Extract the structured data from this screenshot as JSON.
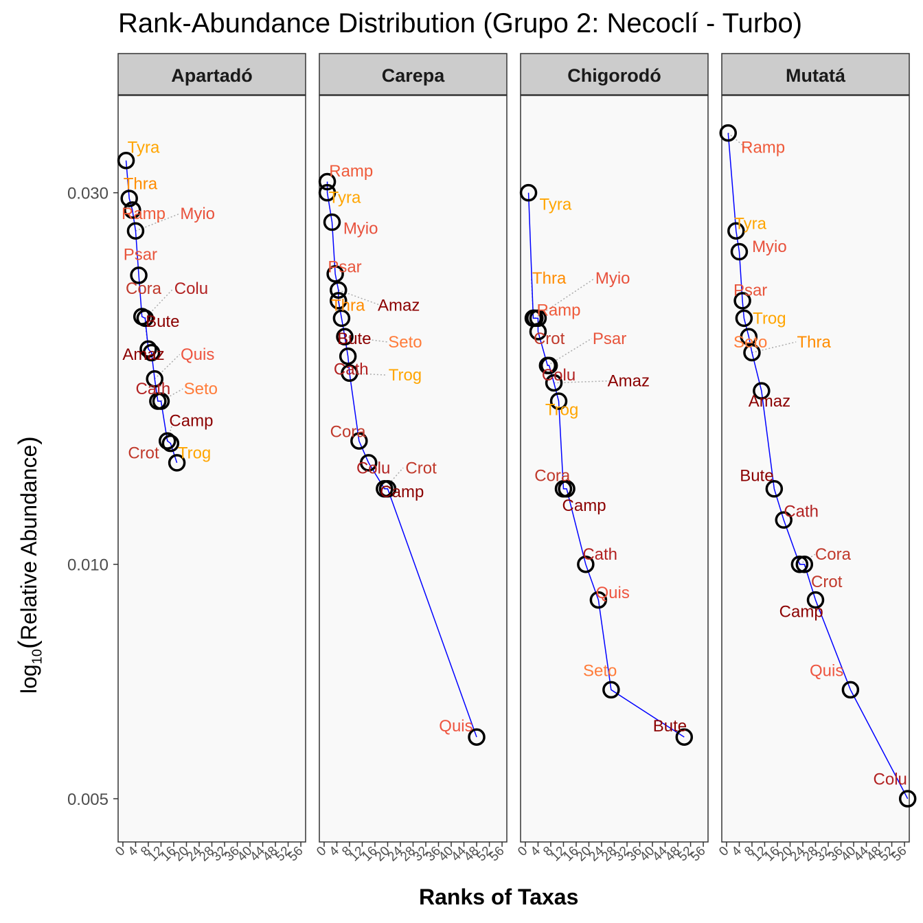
{
  "chart_data": {
    "type": "scatter",
    "title": "Rank-Abundance Distribution (Grupo 2: Necoclí - Turbo)",
    "xlabel": "Ranks of Taxas",
    "ylabel": {
      "prefix": "log",
      "sub": "10",
      "text": "Relative Abundance"
    },
    "y_scale": "log",
    "ylim": [
      0.0044,
      0.04
    ],
    "xlim": [
      -1.5,
      57.5
    ],
    "y_ticks": [
      {
        "value": 0.005,
        "label": "0.005"
      },
      {
        "value": 0.01,
        "label": "0.010"
      },
      {
        "value": 0.03,
        "label": "0.030"
      }
    ],
    "x_ticks": [
      0,
      4,
      8,
      12,
      16,
      20,
      24,
      28,
      32,
      36,
      40,
      44,
      48,
      52,
      56
    ],
    "panel_background": "#f9f9f9",
    "strip_background": "#cccccc",
    "line_color": "#0000ff",
    "point_color": "#000000",
    "label_colors": {
      "Tyra": "#ffa500",
      "Thra": "#ff8c00",
      "Trog": "#ffa500",
      "Ramp": "#ef5a3a",
      "Myio": "#e8513c",
      "Psar": "#e8553c",
      "Seto": "#ff7c3a",
      "Quis": "#ee5540",
      "Cora": "#c0392b",
      "Crot": "#c0392b",
      "Colu": "#b22222",
      "Cath": "#b22222",
      "Bute": "#8b0000",
      "Amaz": "#8b0000",
      "Camp": "#8b0000"
    },
    "panels": [
      {
        "name": "Apartadó",
        "points": [
          {
            "taxon": "Tyra",
            "rank": 1,
            "abundance": 0.033
          },
          {
            "taxon": "Thra",
            "rank": 2,
            "abundance": 0.0295
          },
          {
            "taxon": "Ramp",
            "rank": 3,
            "abundance": 0.0285
          },
          {
            "taxon": "Myio",
            "rank": 4,
            "abundance": 0.0268
          },
          {
            "taxon": "Psar",
            "rank": 5,
            "abundance": 0.0235
          },
          {
            "taxon": "Cora",
            "rank": 6,
            "abundance": 0.0208
          },
          {
            "taxon": "Colu",
            "rank": 7,
            "abundance": 0.0207
          },
          {
            "taxon": "Bute",
            "rank": 8,
            "abundance": 0.0189
          },
          {
            "taxon": "Amaz",
            "rank": 9,
            "abundance": 0.0187
          },
          {
            "taxon": "Quis",
            "rank": 10,
            "abundance": 0.0173
          },
          {
            "taxon": "Cath",
            "rank": 11,
            "abundance": 0.0162
          },
          {
            "taxon": "Seto",
            "rank": 12,
            "abundance": 0.0162
          },
          {
            "taxon": "Camp",
            "rank": 14,
            "abundance": 0.0144
          },
          {
            "taxon": "Crot",
            "rank": 15,
            "abundance": 0.0143
          },
          {
            "taxon": "Trog",
            "rank": 17,
            "abundance": 0.0135
          }
        ],
        "labels": [
          {
            "taxon": "Tyra",
            "rank": 6.5,
            "abundance": 0.0343
          },
          {
            "taxon": "Thra",
            "rank": 5.5,
            "abundance": 0.0308
          },
          {
            "taxon": "Ramp",
            "rank": 6.5,
            "abundance": 0.0282
          },
          {
            "taxon": "Myio",
            "rank": 23.5,
            "abundance": 0.0282
          },
          {
            "taxon": "Psar",
            "rank": 5.5,
            "abundance": 0.025
          },
          {
            "taxon": "Cora",
            "rank": 6.5,
            "abundance": 0.0226
          },
          {
            "taxon": "Colu",
            "rank": 21.5,
            "abundance": 0.0226
          },
          {
            "taxon": "Bute",
            "rank": 12.5,
            "abundance": 0.0205
          },
          {
            "taxon": "Amaz",
            "rank": 6.5,
            "abundance": 0.0186
          },
          {
            "taxon": "Quis",
            "rank": 23.5,
            "abundance": 0.0186
          },
          {
            "taxon": "Cath",
            "rank": 9.5,
            "abundance": 0.0168
          },
          {
            "taxon": "Seto",
            "rank": 24.5,
            "abundance": 0.0168
          },
          {
            "taxon": "Camp",
            "rank": 21.5,
            "abundance": 0.0153
          },
          {
            "taxon": "Crot",
            "rank": 6.5,
            "abundance": 0.0139
          },
          {
            "taxon": "Trog",
            "rank": 22.5,
            "abundance": 0.0139
          }
        ]
      },
      {
        "name": "Carepa",
        "points": [
          {
            "taxon": "Ramp",
            "rank": 1,
            "abundance": 0.031
          },
          {
            "taxon": "Tyra",
            "rank": 1,
            "abundance": 0.03
          },
          {
            "taxon": "Myio",
            "rank": 2.5,
            "abundance": 0.0275
          },
          {
            "taxon": "Psar",
            "rank": 3.5,
            "abundance": 0.0236
          },
          {
            "taxon": "Amaz",
            "rank": 4.5,
            "abundance": 0.0225
          },
          {
            "taxon": "Thra",
            "rank": 4.5,
            "abundance": 0.0218
          },
          {
            "taxon": "Bute",
            "rank": 5.5,
            "abundance": 0.0207
          },
          {
            "taxon": "Seto",
            "rank": 6.5,
            "abundance": 0.0196
          },
          {
            "taxon": "Cath",
            "rank": 7.5,
            "abundance": 0.0185
          },
          {
            "taxon": "Trog",
            "rank": 8,
            "abundance": 0.0176
          },
          {
            "taxon": "Cora",
            "rank": 11,
            "abundance": 0.0144
          },
          {
            "taxon": "Colu",
            "rank": 14,
            "abundance": 0.0135
          },
          {
            "taxon": "Crot",
            "rank": 19,
            "abundance": 0.0125
          },
          {
            "taxon": "Camp",
            "rank": 20,
            "abundance": 0.0125
          },
          {
            "taxon": "Quis",
            "rank": 48,
            "abundance": 0.006
          }
        ],
        "labels": [
          {
            "taxon": "Ramp",
            "rank": 8.5,
            "abundance": 0.032
          },
          {
            "taxon": "Tyra",
            "rank": 6.5,
            "abundance": 0.0296
          },
          {
            "taxon": "Myio",
            "rank": 11.5,
            "abundance": 0.027
          },
          {
            "taxon": "Psar",
            "rank": 6.5,
            "abundance": 0.0241
          },
          {
            "taxon": "Amaz",
            "rank": 23.5,
            "abundance": 0.0215
          },
          {
            "taxon": "Thra",
            "rank": 7.5,
            "abundance": 0.0215
          },
          {
            "taxon": "Bute",
            "rank": 9.5,
            "abundance": 0.0195
          },
          {
            "taxon": "Seto",
            "rank": 25.5,
            "abundance": 0.0193
          },
          {
            "taxon": "Cath",
            "rank": 8.5,
            "abundance": 0.0178
          },
          {
            "taxon": "Trog",
            "rank": 25.5,
            "abundance": 0.0175
          },
          {
            "taxon": "Cora",
            "rank": 7.5,
            "abundance": 0.0148
          },
          {
            "taxon": "Colu",
            "rank": 15.5,
            "abundance": 0.0133
          },
          {
            "taxon": "Crot",
            "rank": 30.5,
            "abundance": 0.0133
          },
          {
            "taxon": "Camp",
            "rank": 24.5,
            "abundance": 0.0124
          },
          {
            "taxon": "Quis",
            "rank": 41.5,
            "abundance": 0.0062
          }
        ]
      },
      {
        "name": "Chigorodó",
        "points": [
          {
            "taxon": "Tyra",
            "rank": 1,
            "abundance": 0.03
          },
          {
            "taxon": "Thra",
            "rank": 2.5,
            "abundance": 0.0207
          },
          {
            "taxon": "Myio",
            "rank": 3,
            "abundance": 0.0207
          },
          {
            "taxon": "Ramp",
            "rank": 4,
            "abundance": 0.0207
          },
          {
            "taxon": "Crot",
            "rank": 4,
            "abundance": 0.0199
          },
          {
            "taxon": "Psar",
            "rank": 7,
            "abundance": 0.018
          },
          {
            "taxon": "Colu",
            "rank": 7.5,
            "abundance": 0.018
          },
          {
            "taxon": "Amaz",
            "rank": 9,
            "abundance": 0.0171
          },
          {
            "taxon": "Trog",
            "rank": 10.5,
            "abundance": 0.0162
          },
          {
            "taxon": "Cora",
            "rank": 12,
            "abundance": 0.0125
          },
          {
            "taxon": "Camp",
            "rank": 13,
            "abundance": 0.0125
          },
          {
            "taxon": "Cath",
            "rank": 19,
            "abundance": 0.01
          },
          {
            "taxon": "Quis",
            "rank": 23,
            "abundance": 0.009
          },
          {
            "taxon": "Seto",
            "rank": 27,
            "abundance": 0.0069
          },
          {
            "taxon": "Bute",
            "rank": 50,
            "abundance": 0.006
          }
        ],
        "labels": [
          {
            "taxon": "Tyra",
            "rank": 9.5,
            "abundance": 0.029
          },
          {
            "taxon": "Thra",
            "rank": 7.5,
            "abundance": 0.0233
          },
          {
            "taxon": "Myio",
            "rank": 27.5,
            "abundance": 0.0233
          },
          {
            "taxon": "Ramp",
            "rank": 10.5,
            "abundance": 0.0212
          },
          {
            "taxon": "Crot",
            "rank": 7.5,
            "abundance": 0.0195
          },
          {
            "taxon": "Psar",
            "rank": 26.5,
            "abundance": 0.0195
          },
          {
            "taxon": "Colu",
            "rank": 10.5,
            "abundance": 0.0175
          },
          {
            "taxon": "Amaz",
            "rank": 32.5,
            "abundance": 0.0172
          },
          {
            "taxon": "Trog",
            "rank": 11.5,
            "abundance": 0.0158
          },
          {
            "taxon": "Cora",
            "rank": 8.5,
            "abundance": 0.013
          },
          {
            "taxon": "Camp",
            "rank": 18.5,
            "abundance": 0.0119
          },
          {
            "taxon": "Cath",
            "rank": 23.5,
            "abundance": 0.0103
          },
          {
            "taxon": "Quis",
            "rank": 27.5,
            "abundance": 0.0092
          },
          {
            "taxon": "Seto",
            "rank": 23.5,
            "abundance": 0.0073
          },
          {
            "taxon": "Bute",
            "rank": 45.5,
            "abundance": 0.0062
          }
        ]
      },
      {
        "name": "Mutatá",
        "points": [
          {
            "taxon": "Ramp",
            "rank": 0.5,
            "abundance": 0.0358
          },
          {
            "taxon": "Tyra",
            "rank": 3,
            "abundance": 0.0268
          },
          {
            "taxon": "Myio",
            "rank": 4,
            "abundance": 0.0252
          },
          {
            "taxon": "Psar",
            "rank": 5,
            "abundance": 0.0218
          },
          {
            "taxon": "Trog",
            "rank": 5.5,
            "abundance": 0.0207
          },
          {
            "taxon": "Seto",
            "rank": 7,
            "abundance": 0.0196
          },
          {
            "taxon": "Thra",
            "rank": 8,
            "abundance": 0.0187
          },
          {
            "taxon": "Amaz",
            "rank": 11,
            "abundance": 0.0167
          },
          {
            "taxon": "Bute",
            "rank": 15,
            "abundance": 0.0125
          },
          {
            "taxon": "Cath",
            "rank": 18,
            "abundance": 0.0114
          },
          {
            "taxon": "Cora",
            "rank": 23,
            "abundance": 0.01
          },
          {
            "taxon": "Camp",
            "rank": 24.5,
            "abundance": 0.01
          },
          {
            "taxon": "Crot",
            "rank": 28,
            "abundance": 0.009
          },
          {
            "taxon": "Quis",
            "rank": 39,
            "abundance": 0.0069
          },
          {
            "taxon": "Colu",
            "rank": 57,
            "abundance": 0.005
          }
        ],
        "labels": [
          {
            "taxon": "Ramp",
            "rank": 11.5,
            "abundance": 0.0343
          },
          {
            "taxon": "Tyra",
            "rank": 7.5,
            "abundance": 0.0274
          },
          {
            "taxon": "Myio",
            "rank": 13.5,
            "abundance": 0.0256
          },
          {
            "taxon": "Psar",
            "rank": 7.5,
            "abundance": 0.0225
          },
          {
            "taxon": "Trog",
            "rank": 13.5,
            "abundance": 0.0207
          },
          {
            "taxon": "Seto",
            "rank": 7.5,
            "abundance": 0.0193
          },
          {
            "taxon": "Thra",
            "rank": 27.5,
            "abundance": 0.0193
          },
          {
            "taxon": "Amaz",
            "rank": 13.5,
            "abundance": 0.0162
          },
          {
            "taxon": "Bute",
            "rank": 9.5,
            "abundance": 0.013
          },
          {
            "taxon": "Cath",
            "rank": 23.5,
            "abundance": 0.0117
          },
          {
            "taxon": "Cora",
            "rank": 33.5,
            "abundance": 0.0103
          },
          {
            "taxon": "Camp",
            "rank": 23.5,
            "abundance": 0.0087
          },
          {
            "taxon": "Crot",
            "rank": 31.5,
            "abundance": 0.0095
          },
          {
            "taxon": "Quis",
            "rank": 31.5,
            "abundance": 0.0073
          },
          {
            "taxon": "Colu",
            "rank": 51.5,
            "abundance": 0.0053
          }
        ]
      }
    ]
  }
}
